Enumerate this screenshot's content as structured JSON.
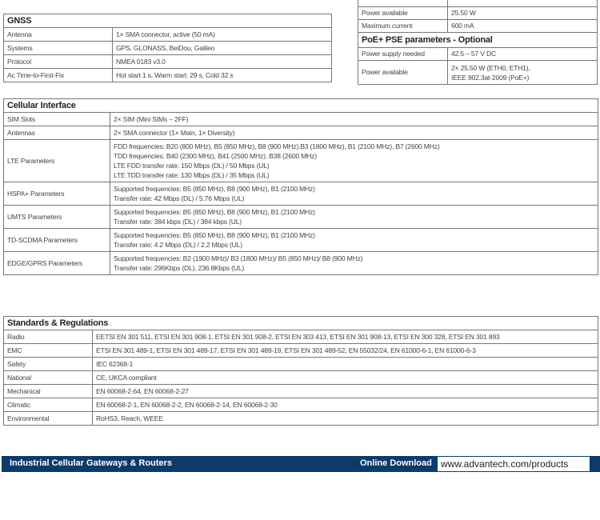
{
  "power": {
    "rows": [
      {
        "label": "Power available",
        "value": "25.50 W"
      },
      {
        "label": "Maximum current",
        "value": "600 mA"
      }
    ],
    "pse_title": "PoE+ PSE parameters - Optional",
    "pse_rows": [
      {
        "label": "Power supply needed",
        "value": "42.5 – 57 V DC"
      },
      {
        "label": "Power available",
        "lines": [
          "2× 25.50 W (ETH0, ETH1),",
          "IEEE 802.3at-2009 (PoE+)"
        ]
      }
    ]
  },
  "gnss": {
    "title": "GNSS",
    "rows": [
      {
        "label": "Antenna",
        "value": "1× SMA connector, active (50 mA)"
      },
      {
        "label": "Systems",
        "value": "GPS, GLONASS, BeiDou, Galileo"
      },
      {
        "label": "Protocol",
        "value": "NMEA 0183 v3.0"
      },
      {
        "label": "Ac Time-to-First-Fix",
        "value": "Hot start 1 s, Warm start: 29 s, Cold 32 s"
      }
    ]
  },
  "cellular": {
    "title": "Cellular Interface",
    "rows": [
      {
        "label": "SIM Slots",
        "lines": [
          "2× SIM (Mini SIMs – 2FF)"
        ]
      },
      {
        "label": "Antennas",
        "lines": [
          "2× SMA connector (1× Main, 1× Diversity)"
        ]
      },
      {
        "label": "LTE Parameters",
        "lines": [
          "FDD frequencies: B20 (800 MHz), B5 (850 MHz), B8 (900 MHz),B3 (1800 MHz), B1 (2100 MHz), B7 (2600 MHz)",
          "TDD frequencies: B40 (2300 MHz), B41 (2500 MHz), B38 (2600 MHz)",
          "LTE FDD transfer rate: 150 Mbps (DL) / 50 Mbps (UL)",
          "LTE TDD transfer rate: 130 Mbps (DL) / 35 Mbps (UL)"
        ]
      },
      {
        "label": "HSPA+ Parameters",
        "lines": [
          "Supported frequencies: B5 (850 MHz), B8 (900 MHz), B1 (2100 MHz)",
          "Transfer rate: 42 Mbps (DL) / 5.76 Mbps (UL)"
        ]
      },
      {
        "label": "UMTS Parameters",
        "lines": [
          "Supported frequencies: B5 (850 MHz), B8 (900 MHz), B1 (2100 MHz)",
          "Transfer rate: 384 kbps (DL) / 384 kbps (UL)"
        ]
      },
      {
        "label": "TD-SCDMA Parameters",
        "lines": [
          "Supported frequencies: B5 (850 MHz), B8 (900 MHz), B1 (2100 MHz)",
          "Transfer rate: 4.2 Mbps (DL) / 2.2 Mbps (UL)"
        ]
      },
      {
        "label": "EDGE/GPRS Parameters",
        "lines": [
          "Supported frequencies: B2 (1900 MHz)/ B3 (1800 MHz)/ B5 (850 MHz)/ B8 (900 MHz)",
          "Transfer rate: 296Kbps (DL), 236.8Kbps (UL)"
        ]
      }
    ]
  },
  "standards": {
    "title": "Standards & Regulations",
    "rows": [
      {
        "label": "Radio",
        "value": "EETSI EN 301 511, ETSI EN 301 908-1, ETSI EN 301 908-2, ETSI EN 303 413, ETSI EN 301 908-13, ETSI EN 300 328, ETSI EN 301 893"
      },
      {
        "label": "EMC",
        "value": "ETSI EN 301 489-1, ETSI EN 301 489-17, ETSI EN 301 489-19, ETSI EN 301 489-52, EN 55032/24, EN 61000-6-1, EN 61000-6-3"
      },
      {
        "label": "Safety",
        "value": "IEC 62368-1"
      },
      {
        "label": "National",
        "value": "CE, UKCA compliant"
      },
      {
        "label": "Mechanical",
        "value": "EN 60068-2-64, EN 60068-2-27"
      },
      {
        "label": "Climatic",
        "value": "EN 60068-2-1, EN 60068-2-2, EN 60068-2-14, EN 60068-2-30"
      },
      {
        "label": "Environmental",
        "value": "RoHS3, Reach, WEEE"
      }
    ]
  },
  "footer": {
    "category": "Industrial Cellular Gateways & Routers",
    "download_label": "Online Download",
    "url": "www.advantech.com/products",
    "bar_color": "#0c3b6b"
  }
}
